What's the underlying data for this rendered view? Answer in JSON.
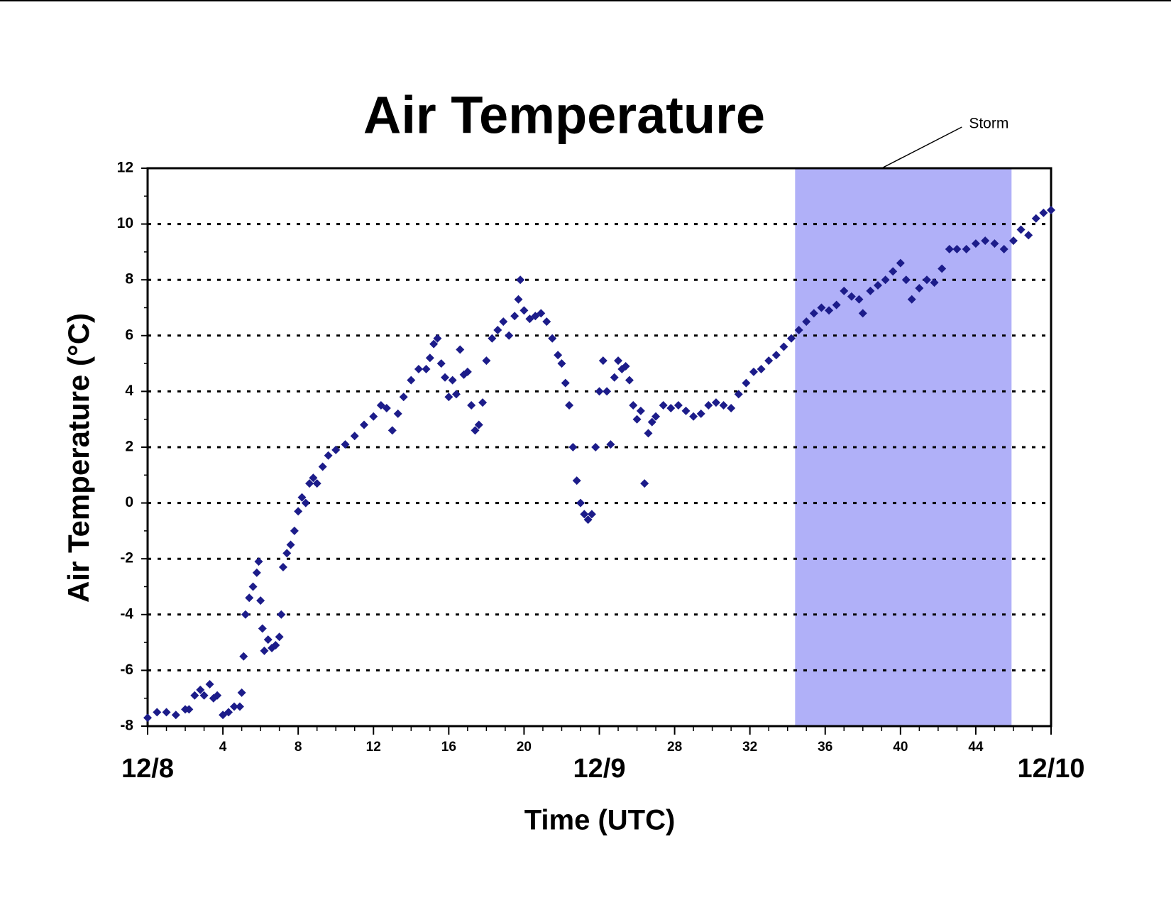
{
  "chart_data": {
    "type": "scatter",
    "title": "Air Temperature",
    "xlabel": "Time (UTC)",
    "ylabel": "Air Temperature (°C)",
    "color": "#1c1c8a",
    "grid": true,
    "xlim": [
      0,
      48
    ],
    "ylim": [
      -8,
      12
    ],
    "yticks": [
      -8,
      -6,
      -4,
      -2,
      0,
      2,
      4,
      6,
      8,
      10,
      12
    ],
    "xticks": [
      {
        "value": 0,
        "label": "12/8"
      },
      4,
      8,
      12,
      16,
      20,
      {
        "value": 24,
        "label": "12/9"
      },
      28,
      32,
      36,
      40,
      44,
      {
        "value": 48,
        "label": "12/10"
      }
    ],
    "shaded_region": {
      "text": "Storm",
      "x_start": 34.4,
      "x_end": 45.9,
      "color": "#b0b0f8"
    },
    "series": [
      {
        "name": "Air Temperature",
        "x": [
          0,
          0.5,
          1,
          1.5,
          2,
          2.2,
          2.5,
          2.8,
          3,
          3.3,
          3.5,
          3.7,
          4,
          4.3,
          4.6,
          4.9,
          5,
          5.1,
          5.2,
          5.4,
          5.6,
          5.8,
          5.9,
          6,
          6.1,
          6.2,
          6.4,
          6.6,
          6.8,
          7,
          7.1,
          7.2,
          7.4,
          7.6,
          7.8,
          8,
          8.2,
          8.4,
          8.6,
          8.8,
          9,
          9.3,
          9.6,
          10,
          10.5,
          11,
          11.5,
          12,
          12.4,
          12.7,
          13,
          13.3,
          13.6,
          14,
          14.4,
          14.8,
          15,
          15.2,
          15.4,
          15.6,
          15.8,
          16,
          16.2,
          16.4,
          16.6,
          16.8,
          17,
          17.2,
          17.4,
          17.6,
          17.8,
          18,
          18.3,
          18.6,
          18.9,
          19.2,
          19.5,
          19.7,
          19.8,
          20,
          20.3,
          20.6,
          20.9,
          21.2,
          21.5,
          21.8,
          22,
          22.2,
          22.4,
          22.6,
          22.8,
          23,
          23.2,
          23.4,
          23.6,
          23.8,
          24,
          24.2,
          24.4,
          24.6,
          24.8,
          25,
          25.2,
          25.4,
          25.6,
          25.8,
          26,
          26.2,
          26.4,
          26.6,
          26.8,
          27,
          27.4,
          27.8,
          28.2,
          28.6,
          29,
          29.4,
          29.8,
          30.2,
          30.6,
          31,
          31.4,
          31.8,
          32.2,
          32.6,
          33,
          33.4,
          33.8,
          34.2,
          34.6,
          35,
          35.4,
          35.8,
          36.2,
          36.6,
          37,
          37.4,
          37.8,
          38,
          38.4,
          38.8,
          39.2,
          39.6,
          40,
          40.3,
          40.6,
          41,
          41.4,
          41.8,
          42.2,
          42.6,
          43,
          43.5,
          44,
          44.5,
          45,
          45.5,
          46,
          46.4,
          46.8,
          47.2,
          47.6,
          48
        ],
        "values": [
          -7.7,
          -7.5,
          -7.5,
          -7.6,
          -7.4,
          -7.4,
          -6.9,
          -6.7,
          -6.9,
          -6.5,
          -7,
          -6.9,
          -7.6,
          -7.5,
          -7.3,
          -7.3,
          -6.8,
          -5.5,
          -4,
          -3.4,
          -3,
          -2.5,
          -2.1,
          -3.5,
          -4.5,
          -5.3,
          -4.9,
          -5.2,
          -5.1,
          -4.8,
          -4,
          -2.3,
          -1.8,
          -1.5,
          -1,
          -0.3,
          0.2,
          0,
          0.7,
          0.9,
          0.7,
          1.3,
          1.7,
          1.9,
          2.1,
          2.4,
          2.8,
          3.1,
          3.5,
          3.4,
          2.6,
          3.2,
          3.8,
          4.4,
          4.8,
          4.8,
          5.2,
          5.7,
          5.9,
          5,
          4.5,
          3.8,
          4.4,
          3.9,
          5.5,
          4.6,
          4.7,
          3.5,
          2.6,
          2.8,
          3.6,
          5.1,
          5.9,
          6.2,
          6.5,
          6,
          6.7,
          7.3,
          8,
          6.9,
          6.6,
          6.7,
          6.8,
          6.5,
          5.9,
          5.3,
          5,
          4.3,
          3.5,
          2,
          0.8,
          0,
          -0.4,
          -0.6,
          -0.4,
          2,
          4,
          5.1,
          4,
          2.1,
          4.5,
          5.1,
          4.8,
          4.9,
          4.4,
          3.5,
          3,
          3.3,
          0.7,
          2.5,
          2.9,
          3.1,
          3.5,
          3.4,
          3.5,
          3.3,
          3.1,
          3.2,
          3.5,
          3.6,
          3.5,
          3.4,
          3.9,
          4.3,
          4.7,
          4.8,
          5.1,
          5.3,
          5.6,
          5.9,
          6.2,
          6.5,
          6.8,
          7,
          6.9,
          7.1,
          7.6,
          7.4,
          7.3,
          6.8,
          7.6,
          7.8,
          8,
          8.3,
          8.6,
          8,
          7.3,
          7.7,
          8,
          7.9,
          8.4,
          9.1,
          9.1,
          9.1,
          9.3,
          9.4,
          9.3,
          9.1,
          9.4,
          9.8,
          9.6,
          10.2,
          10.4,
          10.5
        ]
      }
    ]
  }
}
